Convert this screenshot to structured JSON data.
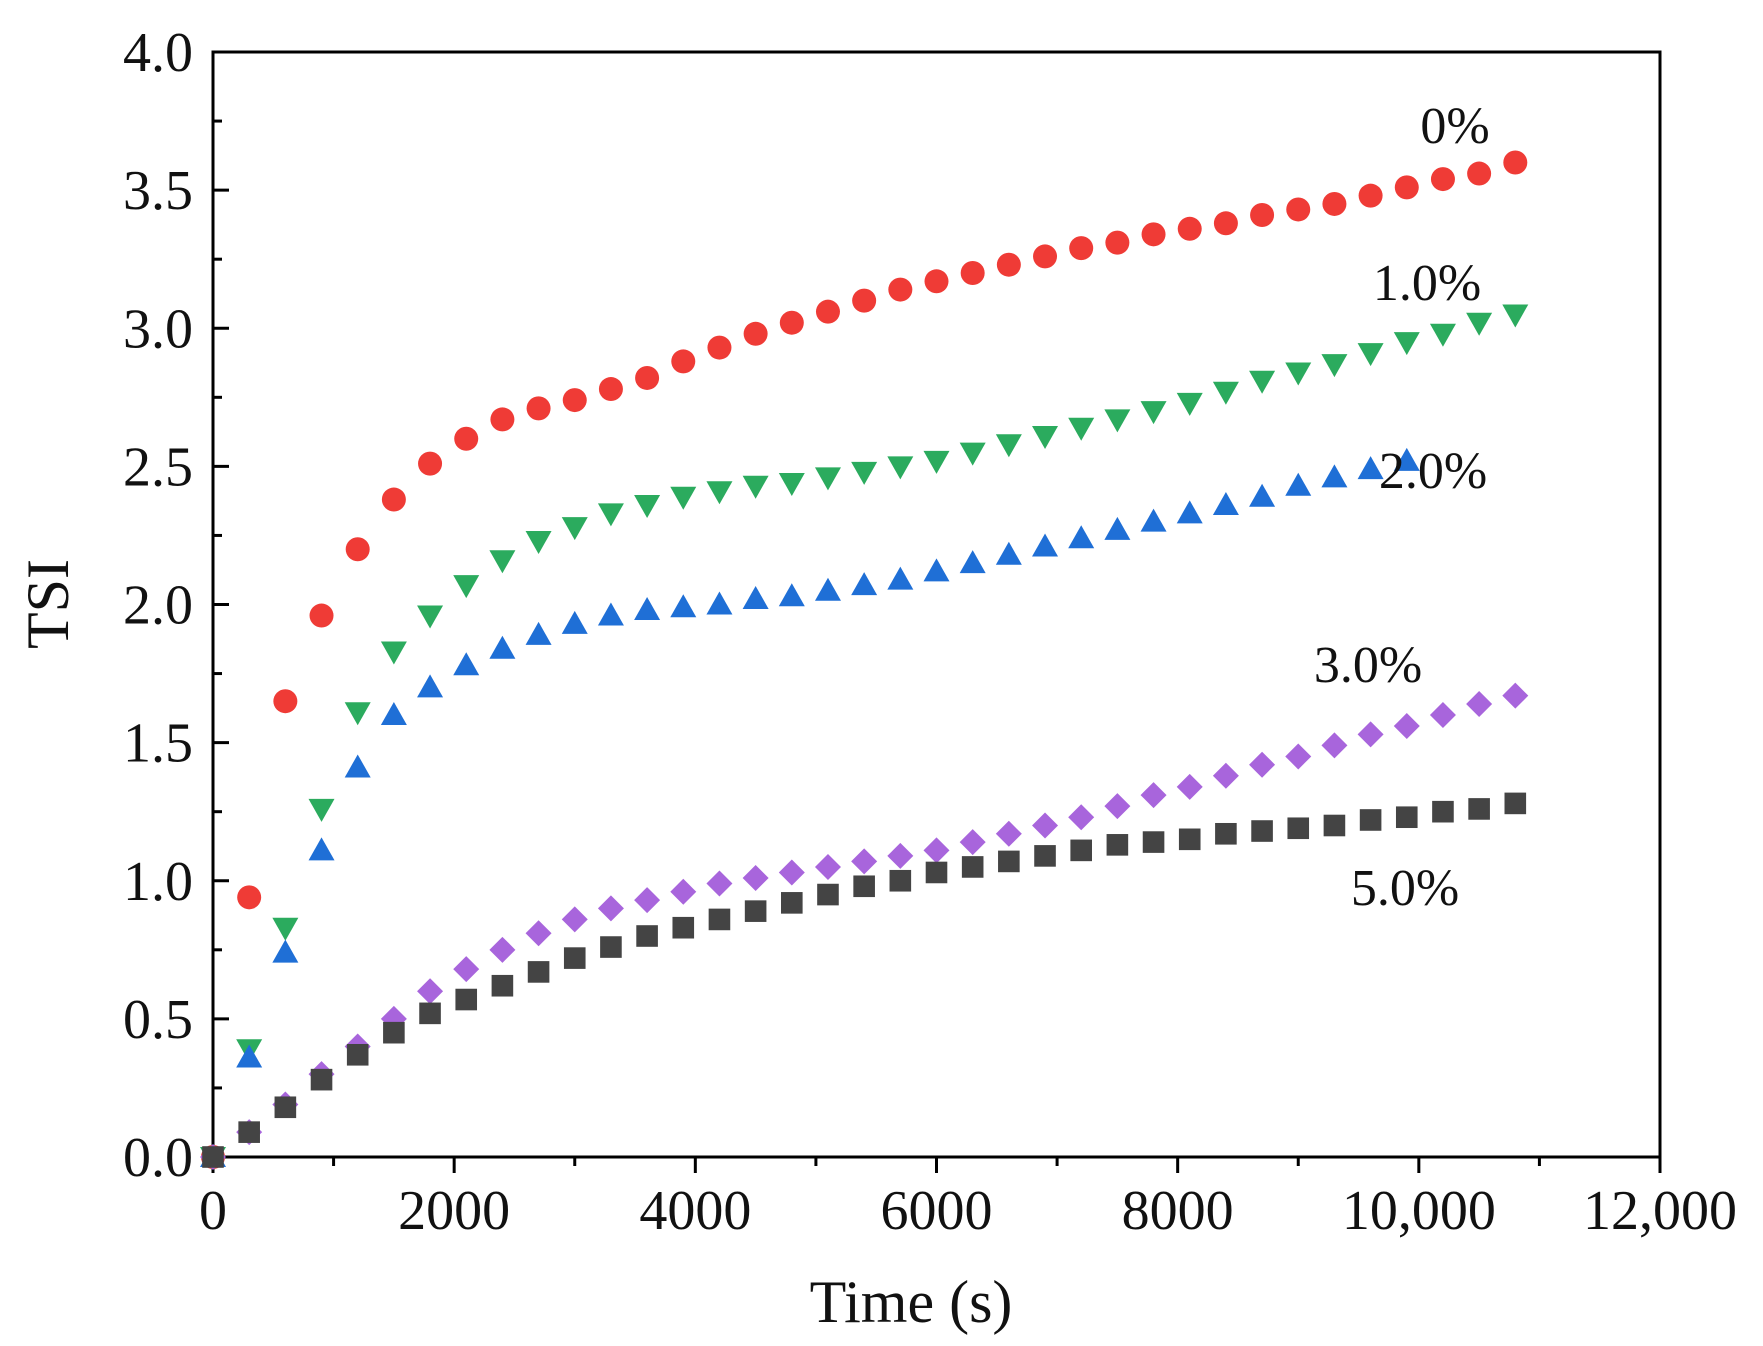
{
  "chart_data": {
    "type": "scatter",
    "title": "",
    "xlabel": "Time (s)",
    "ylabel": "TSI",
    "xlim": [
      0,
      12000
    ],
    "ylim": [
      0,
      4.0
    ],
    "grid": false,
    "x_ticks": [
      0,
      2000,
      4000,
      6000,
      8000,
      10000,
      12000
    ],
    "x_tick_labels": [
      "0",
      "2000",
      "4000",
      "6000",
      "8000",
      "10,000",
      "12,000"
    ],
    "y_ticks": [
      0,
      0.5,
      1.0,
      1.5,
      2.0,
      2.5,
      3.0,
      3.5,
      4.0
    ],
    "y_tick_labels": [
      "0.0",
      "0.5",
      "1.0",
      "1.5",
      "2.0",
      "2.5",
      "3.0",
      "3.5",
      "4.0"
    ],
    "series": [
      {
        "name": "0%",
        "label": "0%",
        "marker": "circle",
        "color": "#ef3b36",
        "x": [
          0,
          300,
          600,
          900,
          1200,
          1500,
          1800,
          2100,
          2400,
          2700,
          3000,
          3300,
          3600,
          3900,
          4200,
          4500,
          4800,
          5100,
          5400,
          5700,
          6000,
          6300,
          6600,
          6900,
          7200,
          7500,
          7800,
          8100,
          8400,
          8700,
          9000,
          9300,
          9600,
          9900,
          10200,
          10500,
          10800
        ],
        "y": [
          0,
          0.94,
          1.65,
          1.96,
          2.2,
          2.38,
          2.51,
          2.6,
          2.67,
          2.71,
          2.74,
          2.78,
          2.82,
          2.88,
          2.93,
          2.98,
          3.02,
          3.06,
          3.1,
          3.14,
          3.17,
          3.2,
          3.23,
          3.26,
          3.29,
          3.31,
          3.34,
          3.36,
          3.38,
          3.41,
          3.43,
          3.45,
          3.48,
          3.51,
          3.54,
          3.56,
          3.6
        ]
      },
      {
        "name": "1.0%",
        "label": "1.0%",
        "marker": "triangle-down",
        "color": "#2bab5e",
        "x": [
          0,
          300,
          600,
          900,
          1200,
          1500,
          1800,
          2100,
          2400,
          2700,
          3000,
          3300,
          3600,
          3900,
          4200,
          4500,
          4800,
          5100,
          5400,
          5700,
          6000,
          6300,
          6600,
          6900,
          7200,
          7500,
          7800,
          8100,
          8400,
          8700,
          9000,
          9300,
          9600,
          9900,
          10200,
          10500,
          10800
        ],
        "y": [
          0,
          0.39,
          0.83,
          1.26,
          1.61,
          1.83,
          1.96,
          2.07,
          2.16,
          2.23,
          2.28,
          2.33,
          2.36,
          2.39,
          2.41,
          2.43,
          2.44,
          2.46,
          2.48,
          2.5,
          2.52,
          2.55,
          2.58,
          2.61,
          2.64,
          2.67,
          2.7,
          2.73,
          2.77,
          2.81,
          2.84,
          2.87,
          2.91,
          2.95,
          2.98,
          3.02,
          3.05
        ]
      },
      {
        "name": "2.0%",
        "label": "2.0%",
        "marker": "triangle-up",
        "color": "#1f6fd6",
        "x": [
          0,
          300,
          600,
          900,
          1200,
          1500,
          1800,
          2100,
          2400,
          2700,
          3000,
          3300,
          3600,
          3900,
          4200,
          4500,
          4800,
          5100,
          5400,
          5700,
          6000,
          6300,
          6600,
          6900,
          7200,
          7500,
          7800,
          8100,
          8400,
          8700,
          9000,
          9300,
          9600,
          9900
        ],
        "y": [
          0,
          0.36,
          0.74,
          1.11,
          1.41,
          1.6,
          1.7,
          1.78,
          1.84,
          1.89,
          1.93,
          1.96,
          1.98,
          1.99,
          2.0,
          2.02,
          2.03,
          2.05,
          2.07,
          2.09,
          2.12,
          2.15,
          2.18,
          2.21,
          2.24,
          2.27,
          2.3,
          2.33,
          2.36,
          2.39,
          2.43,
          2.46,
          2.49,
          2.52
        ]
      },
      {
        "name": "3.0%",
        "label": "3.0%",
        "marker": "diamond",
        "color": "#a865dc",
        "x": [
          0,
          300,
          600,
          900,
          1200,
          1500,
          1800,
          2100,
          2400,
          2700,
          3000,
          3300,
          3600,
          3900,
          4200,
          4500,
          4800,
          5100,
          5400,
          5700,
          6000,
          6300,
          6600,
          6900,
          7200,
          7500,
          7800,
          8100,
          8400,
          8700,
          9000,
          9300,
          9600,
          9900,
          10200,
          10500,
          10800
        ],
        "y": [
          0,
          0.09,
          0.19,
          0.3,
          0.4,
          0.5,
          0.6,
          0.68,
          0.75,
          0.81,
          0.86,
          0.9,
          0.93,
          0.96,
          0.99,
          1.01,
          1.03,
          1.05,
          1.07,
          1.09,
          1.11,
          1.14,
          1.17,
          1.2,
          1.23,
          1.27,
          1.31,
          1.34,
          1.38,
          1.42,
          1.45,
          1.49,
          1.53,
          1.56,
          1.6,
          1.64,
          1.67
        ]
      },
      {
        "name": "5.0%",
        "label": "5.0%",
        "marker": "square",
        "color": "#444444",
        "x": [
          0,
          300,
          600,
          900,
          1200,
          1500,
          1800,
          2100,
          2400,
          2700,
          3000,
          3300,
          3600,
          3900,
          4200,
          4500,
          4800,
          5100,
          5400,
          5700,
          6000,
          6300,
          6600,
          6900,
          7200,
          7500,
          7800,
          8100,
          8400,
          8700,
          9000,
          9300,
          9600,
          9900,
          10200,
          10500,
          10800
        ],
        "y": [
          0,
          0.09,
          0.18,
          0.28,
          0.37,
          0.45,
          0.52,
          0.57,
          0.62,
          0.67,
          0.72,
          0.76,
          0.8,
          0.83,
          0.86,
          0.89,
          0.92,
          0.95,
          0.98,
          1.0,
          1.03,
          1.05,
          1.07,
          1.09,
          1.11,
          1.13,
          1.14,
          1.15,
          1.17,
          1.18,
          1.19,
          1.2,
          1.22,
          1.23,
          1.25,
          1.26,
          1.28
        ]
      }
    ]
  }
}
